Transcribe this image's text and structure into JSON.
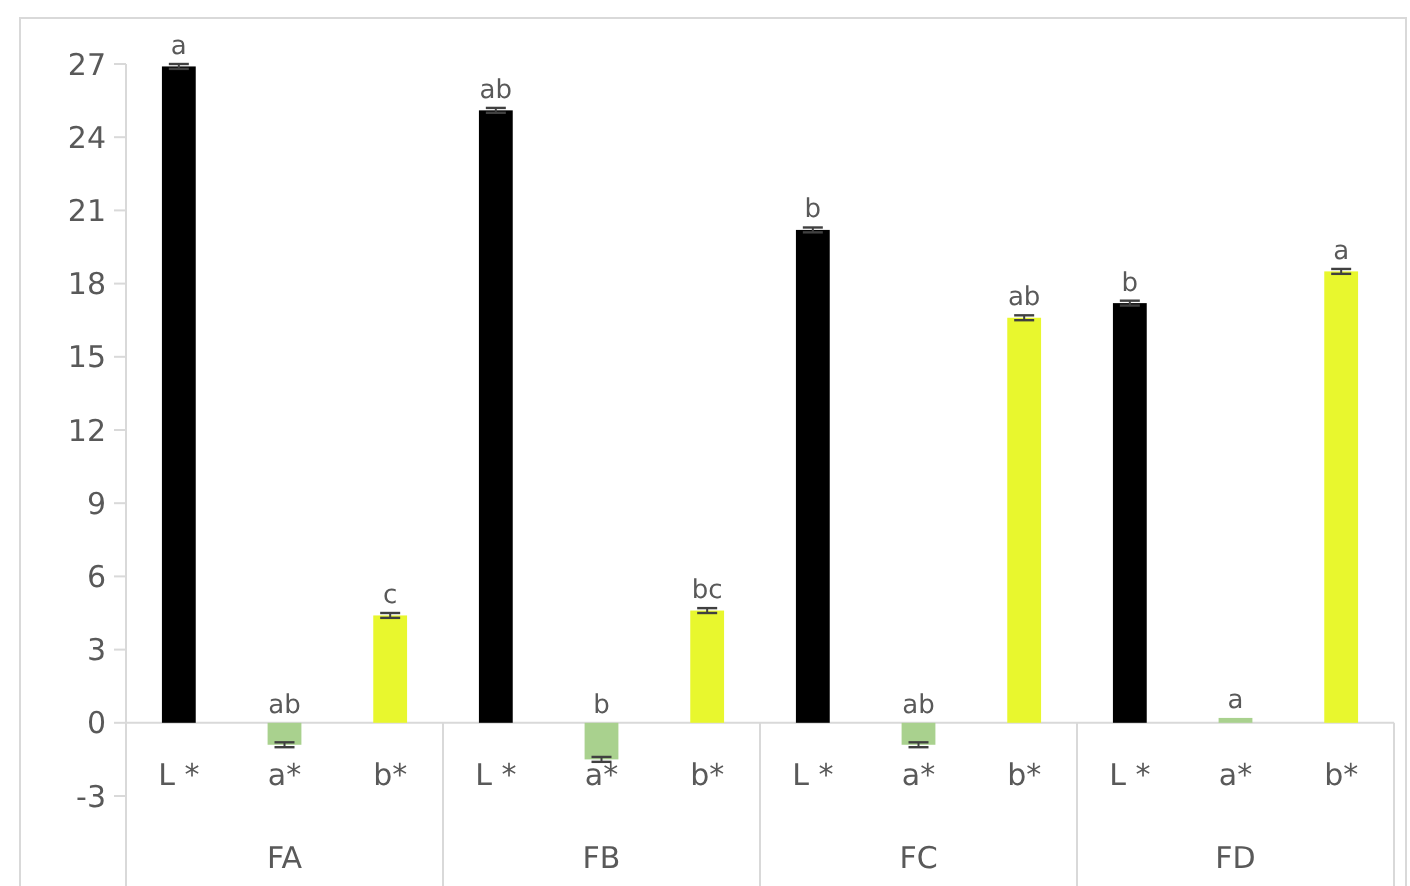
{
  "chart_data": {
    "type": "bar",
    "categories": [
      "L *",
      "a*",
      "b*",
      "L *",
      "a*",
      "b*",
      "L *",
      "a*",
      "b*",
      "L *",
      "a*",
      "b*"
    ],
    "values": [
      26.9,
      -0.9,
      4.4,
      25.1,
      -1.5,
      4.6,
      20.2,
      -0.9,
      16.6,
      17.2,
      0.2,
      18.5
    ],
    "errors": [
      0.1,
      0.1,
      0.1,
      0.1,
      0.1,
      0.1,
      0.1,
      0.1,
      0.1,
      0.1,
      null,
      0.1
    ],
    "colors": [
      "#000000",
      "#a9d18e",
      "#e8f72e",
      "#000000",
      "#a9d18e",
      "#e8f72e",
      "#000000",
      "#a9d18e",
      "#e8f72e",
      "#000000",
      "#a9d18e",
      "#e8f72e"
    ],
    "value_labels": [
      "a",
      "ab",
      "c",
      "ab",
      "b",
      "bc",
      "b",
      "ab",
      "ab",
      "b",
      "a",
      "a"
    ],
    "annotations": [
      "FA",
      "FB",
      "FC",
      "FD"
    ],
    "ylim": [
      -3,
      27
    ],
    "yticks": [
      -3,
      0,
      3,
      6,
      9,
      12,
      15,
      18,
      21,
      24,
      27
    ],
    "grid": false
  }
}
